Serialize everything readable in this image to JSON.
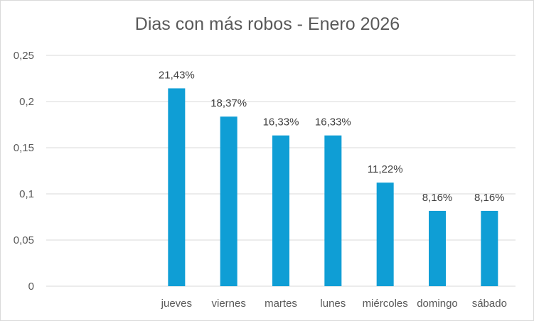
{
  "chart_data": {
    "type": "bar",
    "title": "Dias con más robos - Enero 2026",
    "xlabel": "",
    "ylabel": "",
    "ylim": [
      0,
      0.25
    ],
    "yticks": [
      "0",
      "0,05",
      "0,1",
      "0,15",
      "0,2",
      "0,25"
    ],
    "grid": true,
    "categories": [
      "",
      "",
      "jueves",
      "viernes",
      "martes",
      "lunes",
      "miércoles",
      "domingo",
      "sábado"
    ],
    "values": [
      null,
      null,
      0.2143,
      0.1837,
      0.1633,
      0.1633,
      0.1122,
      0.0816,
      0.0816
    ],
    "data_labels": [
      "",
      "",
      "21,43%",
      "18,37%",
      "16,33%",
      "16,33%",
      "11,22%",
      "8,16%",
      "8,16%"
    ],
    "colors": {
      "bar": "#0F9ED5",
      "grid": "#D9D9D9",
      "text": "#595959"
    }
  }
}
